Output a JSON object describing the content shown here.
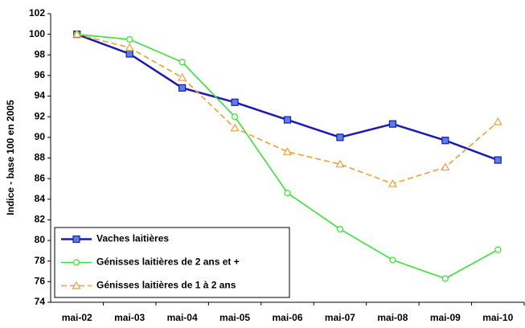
{
  "chart_data": {
    "type": "line",
    "y_label": "Indice - base 100 en 2005",
    "categories": [
      "mai-02",
      "mai-03",
      "mai-04",
      "mai-05",
      "mai-06",
      "mai-07",
      "mai-08",
      "mai-09",
      "mai-10"
    ],
    "series": [
      {
        "name": "Vaches laitières",
        "color": "#1a1ab8",
        "marker": "square",
        "dashed": false,
        "values": [
          100,
          98.1,
          94.8,
          93.4,
          91.7,
          90.0,
          91.3,
          89.7,
          87.8
        ]
      },
      {
        "name": "Génisses laitières de 2 ans et +",
        "color": "#33e633",
        "marker": "circle",
        "dashed": false,
        "values": [
          100,
          99.5,
          97.3,
          92.0,
          84.6,
          81.1,
          78.1,
          76.3,
          79.1
        ]
      },
      {
        "name": "Génisses laitières de 1 à 2 ans",
        "color": "#f0a030",
        "marker": "triangle",
        "dashed": true,
        "values": [
          100,
          98.7,
          95.8,
          90.9,
          88.6,
          87.4,
          85.5,
          87.1,
          91.5
        ]
      }
    ],
    "ylim": [
      74,
      102
    ],
    "yticks": [
      74,
      76,
      78,
      80,
      82,
      84,
      86,
      88,
      90,
      92,
      94,
      96,
      98,
      100,
      102
    ],
    "grid": false,
    "legend": "lower left"
  }
}
